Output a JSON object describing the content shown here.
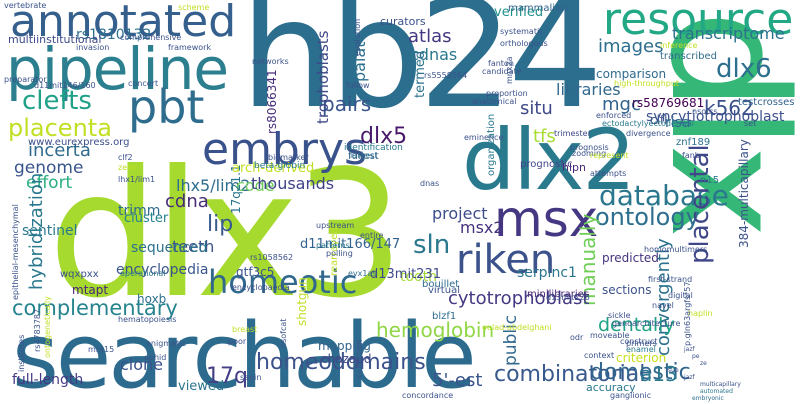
{
  "words": [
    {
      "text": "dlx3",
      "color": "#a6da2f"
    },
    {
      "text": "hb24",
      "color": "#2c6e8e"
    },
    {
      "text": "searchable",
      "color": "#2d6b8e"
    },
    {
      "text": "dlx",
      "color": "#35b778"
    },
    {
      "text": "dlx2",
      "color": "#2a7a8e"
    },
    {
      "text": "pipeline",
      "color": "#2b7f8e"
    },
    {
      "text": "annotated",
      "color": "#355f8d"
    },
    {
      "text": "resource",
      "color": "#22a884"
    },
    {
      "text": "pbt",
      "color": "#2e6d8e"
    },
    {
      "text": "embrys",
      "color": "#3a528b"
    },
    {
      "text": "msx",
      "color": "#453781"
    },
    {
      "text": "riken",
      "color": "#3b528b"
    },
    {
      "text": "homeotic",
      "color": "#31688e"
    },
    {
      "text": "placenta",
      "color": "#c2df23"
    },
    {
      "text": "clefts",
      "color": "#1fa188"
    },
    {
      "text": "database",
      "color": "#2a778e"
    },
    {
      "text": "ontology",
      "color": "#2e6e8e"
    },
    {
      "text": "dlx6",
      "color": "#2d708e"
    },
    {
      "text": "placental",
      "color": "#3f4788"
    },
    {
      "text": "homeodomains",
      "color": "#3b528b"
    },
    {
      "text": "combinatorial",
      "color": "#38598c"
    },
    {
      "text": "hemoglobin",
      "color": "#8fd744"
    },
    {
      "text": "complementary",
      "color": "#25848e"
    },
    {
      "text": "17q",
      "color": "#433e85"
    },
    {
      "text": "manually",
      "color": "#70cf57"
    },
    {
      "text": "dlx5",
      "color": "#48186a"
    },
    {
      "text": "sln",
      "color": "#2a788e"
    },
    {
      "text": "cytotrophoblast",
      "color": "#443983"
    },
    {
      "text": "public",
      "color": "#31688e"
    },
    {
      "text": "convergently",
      "color": "#2c728e"
    },
    {
      "text": "dentally",
      "color": "#20a386"
    },
    {
      "text": "domestic",
      "color": "#32658e"
    },
    {
      "text": "a13",
      "color": "#29798e"
    },
    {
      "text": "k562",
      "color": "#3b528b"
    },
    {
      "text": "transcriptome",
      "color": "#2c728e"
    },
    {
      "text": "lhx5/lim2",
      "color": "#2e6d8e"
    },
    {
      "text": "embryonic",
      "color": "#2f6c8e"
    },
    {
      "text": "tfs",
      "color": "#a8db34"
    },
    {
      "text": "images",
      "color": "#2e6e8e"
    },
    {
      "text": "mgc",
      "color": "#33638d"
    },
    {
      "text": "libraries",
      "color": "#31688e"
    },
    {
      "text": "situ",
      "color": "#3e4989"
    },
    {
      "text": "atlas",
      "color": "#453781"
    },
    {
      "text": "cdnas",
      "color": "#2a778e"
    },
    {
      "text": "cdna",
      "color": "#472c7a"
    },
    {
      "text": "incerta",
      "color": "#2f6b8e"
    },
    {
      "text": "genome",
      "color": "#3a548c"
    },
    {
      "text": "effort",
      "color": "#29af7f"
    },
    {
      "text": "lip",
      "color": "#37598c"
    },
    {
      "text": "code",
      "color": "#6ccd5a"
    },
    {
      "text": "thousands",
      "color": "#404387"
    },
    {
      "text": "teeth",
      "color": "#3b528b"
    },
    {
      "text": "hybridization",
      "color": "#2a788e"
    },
    {
      "text": "project",
      "color": "#3d4e8a"
    },
    {
      "text": "tooth",
      "color": "#a5db36"
    },
    {
      "text": "msx2",
      "color": "#46317e"
    },
    {
      "text": "viewed",
      "color": "#2b748e"
    },
    {
      "text": "clone",
      "color": "#3b528b"
    },
    {
      "text": "full-length",
      "color": "#3b518b"
    },
    {
      "text": "5'-est",
      "color": "#443a83"
    },
    {
      "text": "pairs",
      "color": "#3a548c"
    },
    {
      "text": "palate",
      "color": "#2d708e"
    },
    {
      "text": "trophoblasts",
      "color": "#3f4889"
    },
    {
      "text": "17q21.1",
      "color": "#2a768e"
    },
    {
      "text": "encyclopedia",
      "color": "#39568c"
    },
    {
      "text": "sentinel",
      "color": "#29798e"
    },
    {
      "text": "cluster",
      "color": "#25838e"
    },
    {
      "text": "sequenced",
      "color": "#2c718e"
    },
    {
      "text": "trimm",
      "color": "#2f6c8e"
    },
    {
      "text": "syncytiotrophoblast",
      "color": "#3b528b"
    },
    {
      "text": "rs1810132",
      "color": "#2c718e"
    },
    {
      "text": "multiinstitutional",
      "color": "#3e4a89"
    },
    {
      "text": "www.eurexpress.org",
      "color": "#3c4f8a"
    },
    {
      "text": "rs8066341",
      "color": "#472d7b"
    },
    {
      "text": "termed",
      "color": "#2c718e"
    },
    {
      "text": "verified",
      "color": "#21918c"
    },
    {
      "text": "comparison",
      "color": "#2f6c8e"
    },
    {
      "text": "rs58769681",
      "color": "#440154"
    },
    {
      "text": "clfl",
      "color": "#3b528b"
    },
    {
      "text": "risa",
      "color": "#31688e"
    },
    {
      "text": "serpinc1",
      "color": "#2b758e"
    },
    {
      "text": "d11mit166/147",
      "color": "#33638d"
    },
    {
      "text": "d13mit231",
      "color": "#3e4989"
    },
    {
      "text": "gtf3c5",
      "color": "#3a548c"
    },
    {
      "text": "mtapt",
      "color": "#482475"
    },
    {
      "text": "hoxb",
      "color": "#2d708e"
    },
    {
      "text": "wqxpxx",
      "color": "#3b528b"
    },
    {
      "text": "rearrayed",
      "color": "#bddf26"
    },
    {
      "text": "shotgun",
      "color": "#c0df25"
    },
    {
      "text": "mapping",
      "color": "#33638d"
    },
    {
      "text": "chazaud",
      "color": "#3f4889"
    },
    {
      "text": "predicted",
      "color": "#46337f"
    },
    {
      "text": "sections",
      "color": "#3b528b"
    },
    {
      "text": "criterion",
      "color": "#c8e020"
    },
    {
      "text": "accuracy",
      "color": "#2a788e"
    },
    {
      "text": "fullest",
      "color": "#33638d"
    },
    {
      "text": "arch-derived",
      "color": "#c2df23"
    },
    {
      "text": "curators",
      "color": "#3b528b"
    },
    {
      "text": "mammalian",
      "color": "#33638d"
    },
    {
      "text": "transcribed",
      "color": "#2f6c8e"
    },
    {
      "text": "automated",
      "color": "#2a788e"
    },
    {
      "text": "prognostic",
      "color": "#404688"
    },
    {
      "text": "organization",
      "color": "#2a788e"
    },
    {
      "text": "dnas",
      "color": "#3b528b"
    },
    {
      "text": "hlpn",
      "color": "#482677"
    },
    {
      "text": "virtual",
      "color": "#3b528b"
    },
    {
      "text": "bouillet",
      "color": "#2f6c8e"
    },
    {
      "text": "blzf1",
      "color": "#2f6c8e"
    },
    {
      "text": "minilibraries",
      "color": "#482475"
    },
    {
      "text": "trimester",
      "color": "#3e4989"
    },
    {
      "text": "multicapillary",
      "color": "#3b528b"
    },
    {
      "text": "384-multicapillary",
      "color": "#3b528b"
    },
    {
      "text": "znf189",
      "color": "#2c718e"
    },
    {
      "text": "testcrosses",
      "color": "#33638d"
    },
    {
      "text": "n15",
      "color": "#2a788e"
    },
    {
      "text": "divergence",
      "color": "#3b528b"
    },
    {
      "text": "enforced",
      "color": "#3b528b"
    },
    {
      "text": "ectodactylyectodermal",
      "color": "#2a788e"
    },
    {
      "text": "identification",
      "color": "#2a788e"
    },
    {
      "text": "largest",
      "color": "#2f6c8e"
    },
    {
      "text": "biomarker",
      "color": "#3b528b"
    },
    {
      "text": "beta-globin",
      "color": "#2a788e"
    },
    {
      "text": "upstream",
      "color": "#3b528b"
    },
    {
      "text": "entire",
      "color": "#3b528b"
    },
    {
      "text": "polling",
      "color": "#3b528b"
    },
    {
      "text": "patterns",
      "color": "#2a788e"
    },
    {
      "text": "evx1as",
      "color": "#2f6c8e"
    },
    {
      "text": "encyclopaedia",
      "color": "#3b528b"
    },
    {
      "text": "operational",
      "color": "#2a788e"
    },
    {
      "text": "hematopoiesis",
      "color": "#3b528b"
    },
    {
      "text": "genoarchitecture",
      "color": "#3b528b"
    },
    {
      "text": "construct",
      "color": "#3b528b"
    },
    {
      "text": "enamel",
      "color": "#2a788e"
    },
    {
      "text": "moveable",
      "color": "#3b528b"
    },
    {
      "text": "sickle",
      "color": "#3b528b"
    },
    {
      "text": "primers",
      "color": "#3b528b"
    },
    {
      "text": "context",
      "color": "#3b528b"
    },
    {
      "text": "odr",
      "color": "#3b528b"
    },
    {
      "text": "ganglionic",
      "color": "#3b528b"
    },
    {
      "text": "concordance",
      "color": "#3b528b"
    },
    {
      "text": "sapin",
      "color": "#3b528b"
    },
    {
      "text": "nsofcat",
      "color": "#3b528b"
    },
    {
      "text": "enigmatic",
      "color": "#3b528b"
    },
    {
      "text": "ophid",
      "color": "#3b528b"
    },
    {
      "text": "collection",
      "color": "#3b528b"
    },
    {
      "text": "mnt15",
      "color": "#3b528b"
    },
    {
      "text": "institutes",
      "color": "#3b528b"
    },
    {
      "text": "rs4783787",
      "color": "#3b528b"
    },
    {
      "text": "ontogenetically",
      "color": "#c2df23"
    },
    {
      "text": "digital",
      "color": "#3b528b"
    },
    {
      "text": "navel",
      "color": "#3b528b"
    },
    {
      "text": "first-strand",
      "color": "#3b528b"
    },
    {
      "text": "haplin",
      "color": "#c2df23"
    },
    {
      "text": "p.gln63argfs*57",
      "color": "#3b528b"
    },
    {
      "text": "homomultimers",
      "color": "#3b528b"
    },
    {
      "text": "zooming",
      "color": "#3b528b"
    },
    {
      "text": "represent",
      "color": "#c2df23"
    },
    {
      "text": "attempts",
      "color": "#3b528b"
    },
    {
      "text": "prognosis",
      "color": "#3b528b"
    },
    {
      "text": "eminence",
      "color": "#3b528b"
    },
    {
      "text": "anatomical",
      "color": "#3b528b"
    },
    {
      "text": "proportion",
      "color": "#3b528b"
    },
    {
      "text": "orthologous",
      "color": "#3b528b"
    },
    {
      "text": "systematic",
      "color": "#3b528b"
    },
    {
      "text": "candidate",
      "color": "#3b528b"
    },
    {
      "text": "fanton",
      "color": "#3b528b"
    },
    {
      "text": "mnx2a",
      "color": "#3b528b"
    },
    {
      "text": "rs5558564",
      "color": "#3b528b"
    },
    {
      "text": "nsofcs",
      "color": "#3b528b"
    },
    {
      "text": "high-throughput",
      "color": "#c2df23"
    },
    {
      "text": "inference",
      "color": "#c2df23"
    },
    {
      "text": "evolution",
      "color": "#3b528b"
    },
    {
      "text": "follow",
      "color": "#3b528b"
    },
    {
      "text": "networks",
      "color": "#3b528b"
    },
    {
      "text": "framework",
      "color": "#3b528b"
    },
    {
      "text": "comprehensive",
      "color": "#3b528b"
    },
    {
      "text": "concert",
      "color": "#3b528b"
    },
    {
      "text": "d11mit146/160",
      "color": "#3b528b"
    },
    {
      "text": "preparator",
      "color": "#3b528b"
    },
    {
      "text": "invasion",
      "color": "#3b528b"
    },
    {
      "text": "vertebrate",
      "color": "#3b528b"
    },
    {
      "text": "scheme",
      "color": "#c2df23"
    },
    {
      "text": "jazf",
      "color": "#3b528b"
    },
    {
      "text": "poor",
      "color": "#3b528b"
    },
    {
      "text": "breast",
      "color": "#c2df23"
    },
    {
      "text": "lhx1/lim1",
      "color": "#3b528b"
    },
    {
      "text": "clf2",
      "color": "#3b528b"
    },
    {
      "text": "zero",
      "color": "#c2df23"
    },
    {
      "text": "epithelial-mesenchymal",
      "color": "#3b528b"
    },
    {
      "text": "rs1058562",
      "color": "#3b528b"
    },
    {
      "text": "oulad-abdelghani",
      "color": "#c2df23"
    },
    {
      "text": "d13mit226",
      "color": "#3b528b"
    },
    {
      "text": "set",
      "color": "#3b528b"
    },
    {
      "text": "fanb",
      "color": "#3b528b"
    },
    {
      "text": "sub",
      "color": "#3b528b"
    },
    {
      "text": "ze",
      "color": "#3b528b"
    },
    {
      "text": "pe",
      "color": "#3b528b"
    },
    {
      "text": "jazf",
      "color": "#3b528b"
    }
  ]
}
